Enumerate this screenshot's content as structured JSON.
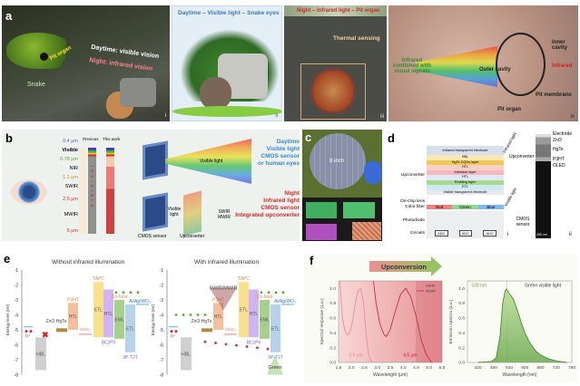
{
  "panel_a": {
    "label": "a",
    "i": {
      "snake": "Snake",
      "pit": "Pit organ",
      "day": "Daytime: visible vision",
      "night": "Night: infrared vision",
      "num": "i"
    },
    "ii": {
      "title": "Daytime – Visible light – Snake eyes",
      "num": "ii"
    },
    "iii": {
      "title": "Night – Infrared light – Pit organ",
      "thermal": "Thermal sensing",
      "num": "iii"
    },
    "iv": {
      "combined": "Infrared combined with visual signals",
      "outer": "Outer cavity",
      "inner": "Inner cavity",
      "infrared": "Infrared",
      "membrane": "Pit membrane",
      "organ": "Pit organ",
      "num": "iv"
    }
  },
  "panel_b": {
    "label": "b",
    "scale": [
      "0.4 μm",
      "Visible",
      "0.78 μm",
      "NIR",
      "1.1 μm",
      "SWIR",
      "2.5 μm",
      "MWIR",
      "5 μm"
    ],
    "previous": "Previous",
    "this_work": "This work",
    "invisible": "INVISIBLE",
    "visible_light": "Visible light",
    "visible_light2": "Visible light",
    "cmos": "CMOS sensor",
    "upconverter": "Upconverter",
    "swir_mwir": "SWIR MWIR",
    "day": [
      "Daytime",
      "Visible light",
      "CMOS sensor",
      "or human eyes"
    ],
    "night": [
      "Night",
      "Infrared light",
      "CMOS sensor",
      "Integrated upconverter"
    ]
  },
  "panel_c": {
    "label": "c",
    "wafer": "8 inch"
  },
  "panel_d": {
    "label": "d",
    "layers": [
      "Infrared transparent electrode",
      "HBL",
      "HgTe CQDs layer",
      "HTL",
      "Interface layer",
      "HTL",
      "Emitting layer",
      "ETL",
      "Visible transparent electrode"
    ],
    "left": [
      "Upconverter",
      "On-chip lens",
      "Color filter",
      "Photodiode",
      "Circuits"
    ],
    "filters": [
      "Red",
      "Green",
      "Blue"
    ],
    "adc": "ADC",
    "ir": "Infrared light",
    "vis": "Visible light",
    "sem_labels": [
      "Electrode",
      "ZnO",
      "HgTe",
      "P3HT",
      "OLED"
    ],
    "sem_left": [
      "Upconverter",
      "CMOS sensor"
    ],
    "scale": "250 nm",
    "num_i": "i",
    "num_ii": "ii"
  },
  "panel_e": {
    "label": "e",
    "title_left": "Without infrared illumination",
    "title_right": "With infrared illumination",
    "ylabel": "Energy level (eV)",
    "yticks": [
      "-1",
      "-2",
      "-3",
      "-4",
      "-5",
      "-6",
      "-7",
      "-8"
    ],
    "layers": [
      {
        "name": "HBL",
        "top": -5.5,
        "bottom": -7.7,
        "color": "#c8c8c8"
      },
      {
        "name": "HTL",
        "top": -3.2,
        "bottom": -5.0,
        "color": "#f2b48c",
        "above": "P3HT"
      },
      {
        "name": "ETL",
        "top": -1.8,
        "bottom": -5.5,
        "color": "#f8dc78",
        "above": "TAPC"
      },
      {
        "name": "HTL",
        "top": -2.3,
        "bottom": -5.5,
        "color": "#c8a8f0",
        "below": "BCzPh"
      },
      {
        "name": "EML",
        "top": -3.0,
        "bottom": -5.6,
        "color": "#98c878",
        "above": "Co-host"
      },
      {
        "name": "ETL",
        "top": -3.3,
        "bottom": -6.5,
        "color": "#a8cce8",
        "below": "3P-T2T"
      }
    ],
    "zno_hgte": "ZnO HgTe",
    "moo3": "MoO₃",
    "electrode": "Al/Ag/WO₃",
    "h": "h⁺",
    "swir": "SWIR/MWIR",
    "green": "Green",
    "bczph_right": "BCzPh"
  },
  "chart_data": [
    {
      "type": "line",
      "title": "",
      "xlabel": "Wavelength (μm)",
      "ylabel": "Spectral response (a.u.)",
      "xlim": [
        1.5,
        5.5
      ],
      "ylim": [
        0,
        1.1
      ],
      "xticks": [
        1.5,
        2.0,
        2.5,
        3.0,
        3.5,
        4.0,
        4.5,
        5.0,
        5.5
      ],
      "yticks": [
        0.0,
        0.2,
        0.4,
        0.6,
        0.8,
        1.0
      ],
      "legend": "top-right",
      "annotations": [
        "2.5 μm",
        "4.5 μm"
      ],
      "series": [
        {
          "name": "SWIR",
          "color": "#f08a9a",
          "x": [
            1.55,
            1.65,
            1.75,
            1.85,
            1.95,
            2.05,
            2.15,
            2.25,
            2.35,
            2.45,
            2.55,
            2.65,
            2.75,
            2.85
          ],
          "y": [
            1.1,
            0.6,
            0.42,
            0.37,
            0.42,
            0.58,
            0.8,
            0.96,
            1.0,
            0.85,
            0.45,
            0.12,
            0.02,
            0.0
          ]
        },
        {
          "name": "MWIR",
          "color": "#c0304a",
          "x": [
            2.85,
            2.95,
            3.1,
            3.25,
            3.35,
            3.5,
            3.7,
            3.9,
            4.1,
            4.3,
            4.5,
            4.7,
            4.9,
            5.1
          ],
          "y": [
            1.1,
            0.8,
            0.52,
            0.38,
            0.35,
            0.45,
            0.7,
            0.92,
            1.0,
            0.88,
            0.62,
            0.3,
            0.1,
            0.0
          ]
        }
      ]
    },
    {
      "type": "area",
      "title": "Upconversion",
      "xlabel": "Wavelength (nm)",
      "ylabel": "Emission spectra (a.u.)",
      "xlim": [
        380,
        780
      ],
      "ylim": [
        0,
        1.1
      ],
      "xticks": [
        420,
        480,
        540,
        600,
        660,
        720,
        780
      ],
      "yticks": [
        0.0,
        0.2,
        0.4,
        0.6,
        0.8,
        1.0
      ],
      "annotations": [
        "520 nm",
        "Green visible light"
      ],
      "series": [
        {
          "color": "#7cb85a",
          "x": [
            420,
            470,
            490,
            505,
            515,
            525,
            530,
            540,
            555,
            570,
            585,
            600,
            620,
            640,
            660,
            690,
            720,
            760
          ],
          "y": [
            0,
            0.01,
            0.06,
            0.35,
            0.8,
            0.97,
            0.99,
            0.93,
            0.86,
            0.72,
            0.55,
            0.4,
            0.26,
            0.16,
            0.1,
            0.05,
            0.02,
            0
          ]
        }
      ]
    }
  ]
}
